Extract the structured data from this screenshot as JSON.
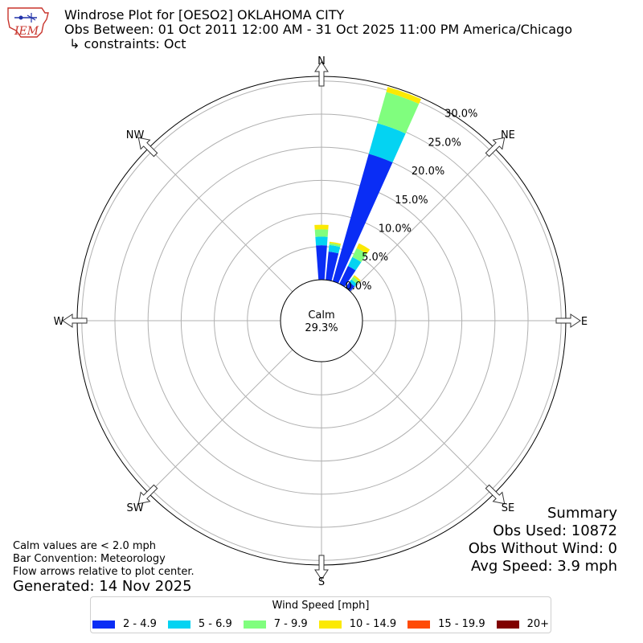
{
  "logo": {
    "text": "IEM"
  },
  "title": {
    "line1": "Windrose Plot for [OESO2] OKLAHOMA CITY",
    "line2": "Obs Between: 01 Oct 2011 12:00 AM - 31 Oct 2025 11:00 PM America/Chicago",
    "line3": "↳ constraints: Oct"
  },
  "summary": {
    "heading": "Summary",
    "obs_used": "Obs Used: 10872",
    "obs_without_wind": "Obs Without Wind: 0",
    "avg_speed": "Avg Speed: 3.9 mph"
  },
  "notes": {
    "calm": "Calm values are < 2.0 mph",
    "convention": "Bar Convention: Meteorology",
    "arrows": "Flow arrows relative to plot center."
  },
  "generated": "Generated: 14 Nov 2025",
  "legend": {
    "title": "Wind Speed [mph]"
  },
  "chart_data": {
    "type": "windrose",
    "calm_label": "Calm",
    "calm_percent": "29.3%",
    "directions": [
      "N",
      "NE",
      "E",
      "SE",
      "S",
      "SW",
      "W",
      "NW"
    ],
    "radial_ticks": [
      0,
      5,
      10,
      15,
      20,
      25,
      30
    ],
    "radial_tick_labels": [
      "0.0%",
      "5.0%",
      "10.0%",
      "15.0%",
      "20.0%",
      "25.0%",
      "30.0%"
    ],
    "radial_max": 30.7,
    "bins": [
      {
        "label": "2 - 4.9",
        "color": "#0a2df5"
      },
      {
        "label": "5 - 6.9",
        "color": "#04d3f2"
      },
      {
        "label": "7 - 9.9",
        "color": "#80fe7e"
      },
      {
        "label": "10 - 14.9",
        "color": "#fbe904"
      },
      {
        "label": "15 - 19.9",
        "color": "#ff4b06"
      },
      {
        "label": "20+",
        "color": "#800100"
      }
    ],
    "sectors": [
      {
        "dir_deg": 0,
        "values": [
          5.2,
          1.3,
          1.1,
          0.7,
          0,
          0
        ]
      },
      {
        "dir_deg": 10,
        "values": [
          4.3,
          1.0,
          0.3,
          0.2,
          0,
          0
        ]
      },
      {
        "dir_deg": 20,
        "values": [
          20.0,
          4.8,
          4.9,
          0.8,
          0,
          0
        ]
      },
      {
        "dir_deg": 30,
        "values": [
          3.0,
          1.5,
          1.5,
          0.8,
          0,
          0
        ]
      },
      {
        "dir_deg": 40,
        "values": [
          1.0,
          0.5,
          0.5,
          0.3,
          0,
          0
        ]
      }
    ]
  }
}
